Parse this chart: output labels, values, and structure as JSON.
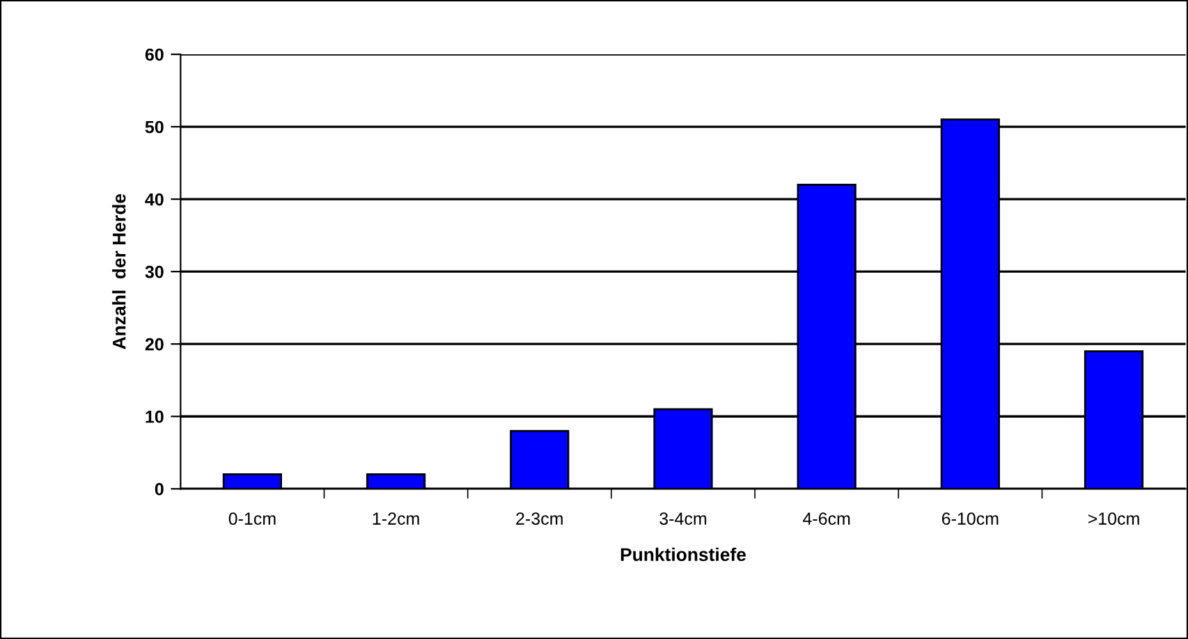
{
  "chart_data": {
    "type": "bar",
    "xlabel": "Punktionstiefe",
    "ylabel": "Anzahl  der Herde",
    "categories": [
      "0-1cm",
      "1-2cm",
      "2-3cm",
      "3-4cm",
      "4-6cm",
      "6-10cm",
      ">10cm"
    ],
    "values": [
      2,
      2,
      8,
      11,
      42,
      51,
      19
    ],
    "color": "#0000ff",
    "ylim": [
      0,
      60
    ],
    "yticks": [
      0,
      10,
      20,
      30,
      40,
      50,
      60
    ],
    "grid": "y",
    "legend": false
  }
}
